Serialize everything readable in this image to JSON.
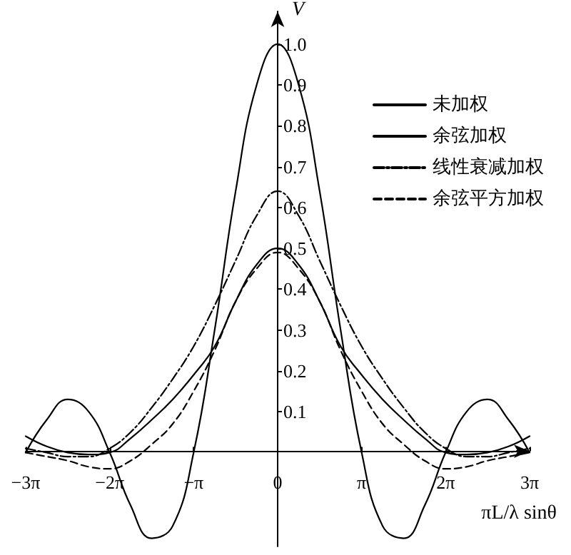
{
  "chart_data": {
    "type": "line",
    "xlabel": "πL/λ sinθ",
    "ylabel": "V",
    "x": [
      -9.425,
      -8.639,
      -7.854,
      -7.069,
      -6.283,
      -5.498,
      -4.712,
      -3.927,
      -3.142,
      -2.356,
      -1.571,
      -0.785,
      0,
      0.785,
      1.571,
      2.356,
      3.142,
      3.927,
      4.712,
      5.498,
      6.283,
      7.069,
      7.854,
      8.639,
      9.425
    ],
    "series": [
      {
        "name": "未加权",
        "color": "#000000",
        "line_style": "solid",
        "values": [
          0,
          0.08,
          0.13,
          0.1,
          0,
          -0.13,
          -0.21,
          -0.18,
          0,
          0.3,
          0.64,
          0.9,
          1.0,
          0.9,
          0.64,
          0.3,
          0,
          -0.18,
          -0.21,
          -0.13,
          0,
          0.1,
          0.13,
          0.08,
          0
        ]
      },
      {
        "name": "余弦加权",
        "color": "#000000",
        "line_style": "solid",
        "values": [
          0.04,
          0.015,
          0,
          -0.005,
          0,
          0.035,
          0.08,
          0.13,
          0.19,
          0.26,
          0.37,
          0.46,
          0.5,
          0.46,
          0.37,
          0.26,
          0.19,
          0.13,
          0.08,
          0.035,
          0,
          -0.005,
          0,
          0.015,
          0.04
        ]
      },
      {
        "name": "线性衰减加权",
        "color": "#000000",
        "line_style": "dashdot",
        "values": [
          0.01,
          0,
          -0.01,
          -0.01,
          0.01,
          0.05,
          0.11,
          0.18,
          0.26,
          0.36,
          0.47,
          0.58,
          0.64,
          0.58,
          0.47,
          0.36,
          0.26,
          0.18,
          0.11,
          0.05,
          0.01,
          -0.01,
          -0.01,
          0,
          0.01
        ]
      },
      {
        "name": "余弦平方加权",
        "color": "#000000",
        "line_style": "dashed",
        "values": [
          0,
          -0.01,
          -0.02,
          -0.035,
          -0.04,
          -0.02,
          0.02,
          0.07,
          0.15,
          0.25,
          0.37,
          0.45,
          0.49,
          0.45,
          0.37,
          0.25,
          0.15,
          0.07,
          0.02,
          -0.02,
          -0.04,
          -0.035,
          -0.02,
          -0.01,
          0
        ]
      }
    ],
    "xlim": [
      -9.425,
      9.425
    ],
    "xticks": [
      {
        "value": -9.425,
        "label": "−3π"
      },
      {
        "value": -6.283,
        "label": "−2π"
      },
      {
        "value": -3.142,
        "label": "−π"
      },
      0,
      {
        "value": 3.142,
        "label": "π"
      },
      {
        "value": 6.283,
        "label": "2π"
      },
      {
        "value": 9.425,
        "label": "3π"
      }
    ],
    "ylim": [
      -0.23,
      1.08
    ],
    "yticks": [
      0.1,
      0.2,
      0.3,
      0.4,
      0.5,
      0.6,
      0.7,
      0.8,
      0.9,
      {
        "value": 1,
        "label": "1.0"
      }
    ],
    "grid": false,
    "legend": "top right",
    "marker": "none"
  }
}
